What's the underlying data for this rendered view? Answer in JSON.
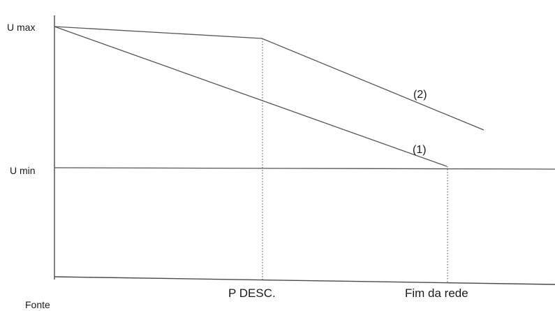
{
  "labels": {
    "u_max": "U max",
    "u_min": "U min",
    "origin": "Fonte",
    "mid_point": "P DESC.",
    "end_point": "Fim da rede",
    "curve_1": "(1)",
    "curve_2": "(2)"
  },
  "colors": {
    "line": "#555555",
    "text": "#1a1a1a"
  }
}
